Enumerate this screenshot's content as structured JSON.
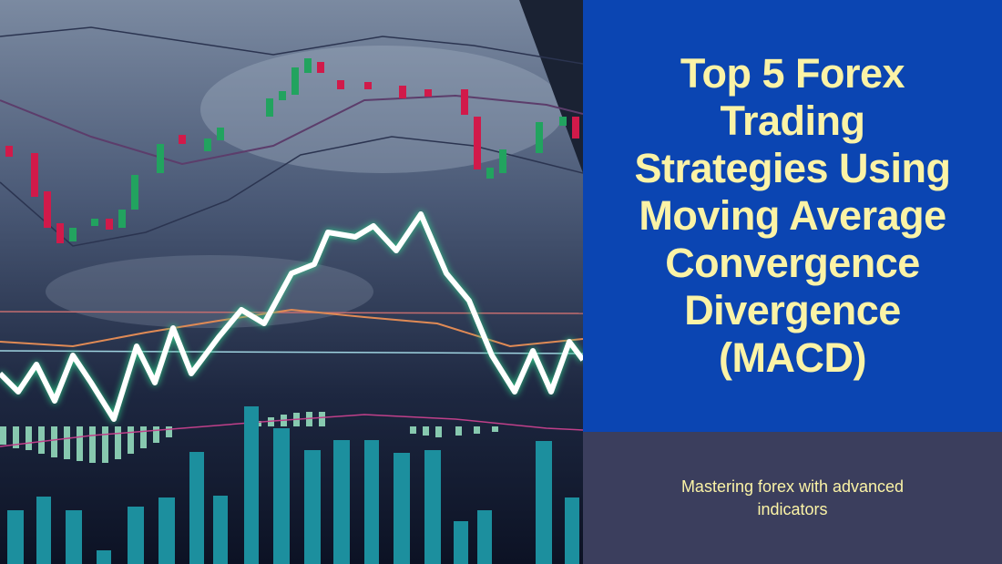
{
  "title": [
    "Top 5 Forex",
    "Trading",
    "Strategies Using",
    "Moving Average",
    "Convergence",
    "Divergence",
    "(MACD)"
  ],
  "subtitle": [
    "Mastering forex with advanced",
    "indicators"
  ]
}
